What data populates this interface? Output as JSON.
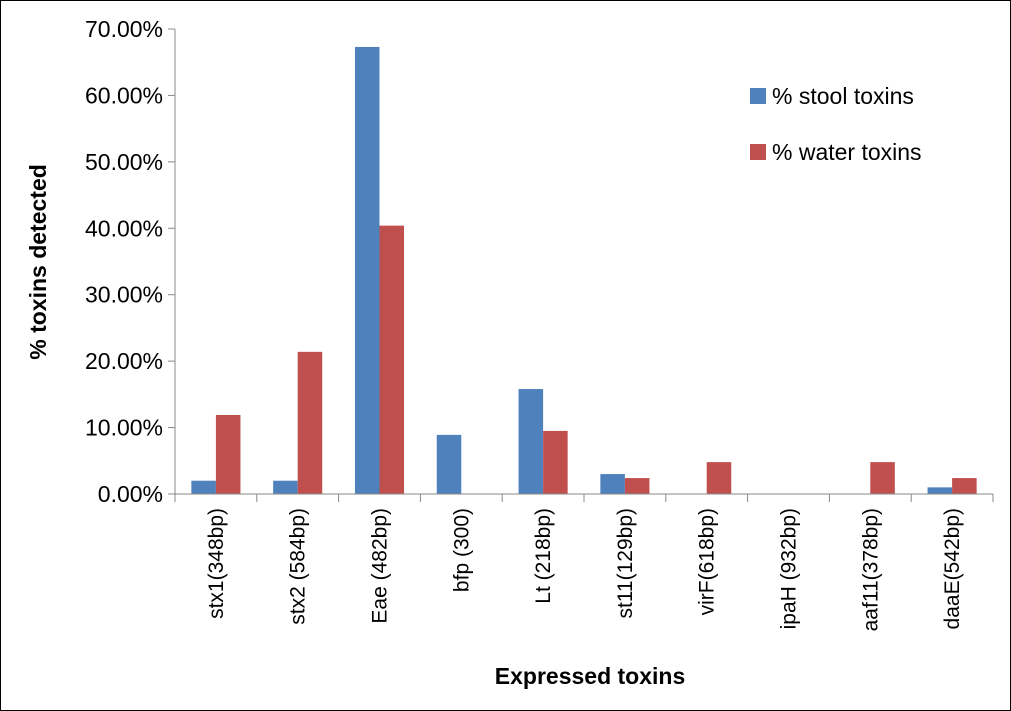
{
  "chart_data": {
    "type": "bar",
    "x_label": "Expressed toxins",
    "y_label": "% toxins detected",
    "categories": [
      "stx1(348bp)",
      "stx2 (584bp)",
      "Eae (482bp)",
      "bfp (300)",
      "Lt (218bp)",
      "st11(129bp)",
      "virF(618bp)",
      "ipaH (932bp)",
      "aaf11(378bp)",
      "daaE(542bp)"
    ],
    "series": [
      {
        "name": "% stool toxins",
        "color": "#4f81bd",
        "values": [
          2.0,
          2.0,
          67.3,
          8.9,
          15.8,
          3.0,
          0,
          0,
          0,
          1.0
        ]
      },
      {
        "name": "% water toxins",
        "color": "#c0504d",
        "values": [
          11.9,
          21.4,
          40.4,
          0,
          9.5,
          2.4,
          4.8,
          0,
          4.8,
          2.4
        ]
      }
    ],
    "ylim": [
      0,
      70
    ],
    "yticks": [
      {
        "value": 0,
        "label": "0.00%"
      },
      {
        "value": 10,
        "label": "10.00%"
      },
      {
        "value": 20,
        "label": "20.00%"
      },
      {
        "value": 30,
        "label": "30.00%"
      },
      {
        "value": 40,
        "label": "40.00%"
      },
      {
        "value": 50,
        "label": "50.00%"
      },
      {
        "value": 60,
        "label": "60.00%"
      },
      {
        "value": 70,
        "label": "70.00%"
      }
    ],
    "grid": false,
    "legend": "top-right"
  }
}
